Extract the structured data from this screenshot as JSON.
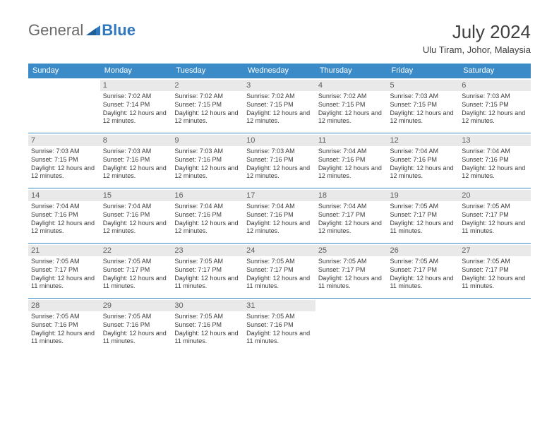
{
  "logo": {
    "part1": "General",
    "part2": "Blue",
    "triangle_color": "#2f78bd"
  },
  "title": "July 2024",
  "location": "Ulu Tiram, Johor, Malaysia",
  "colors": {
    "header_bg": "#3b8bc9",
    "header_text": "#ffffff",
    "daynum_bg": "#e9e9e9",
    "text": "#333333"
  },
  "day_headers": [
    "Sunday",
    "Monday",
    "Tuesday",
    "Wednesday",
    "Thursday",
    "Friday",
    "Saturday"
  ],
  "weeks": [
    [
      null,
      {
        "n": "1",
        "sr": "7:02 AM",
        "ss": "7:14 PM",
        "dh": "12",
        "dm": "12"
      },
      {
        "n": "2",
        "sr": "7:02 AM",
        "ss": "7:15 PM",
        "dh": "12",
        "dm": "12"
      },
      {
        "n": "3",
        "sr": "7:02 AM",
        "ss": "7:15 PM",
        "dh": "12",
        "dm": "12"
      },
      {
        "n": "4",
        "sr": "7:02 AM",
        "ss": "7:15 PM",
        "dh": "12",
        "dm": "12"
      },
      {
        "n": "5",
        "sr": "7:03 AM",
        "ss": "7:15 PM",
        "dh": "12",
        "dm": "12"
      },
      {
        "n": "6",
        "sr": "7:03 AM",
        "ss": "7:15 PM",
        "dh": "12",
        "dm": "12"
      }
    ],
    [
      {
        "n": "7",
        "sr": "7:03 AM",
        "ss": "7:15 PM",
        "dh": "12",
        "dm": "12"
      },
      {
        "n": "8",
        "sr": "7:03 AM",
        "ss": "7:16 PM",
        "dh": "12",
        "dm": "12"
      },
      {
        "n": "9",
        "sr": "7:03 AM",
        "ss": "7:16 PM",
        "dh": "12",
        "dm": "12"
      },
      {
        "n": "10",
        "sr": "7:03 AM",
        "ss": "7:16 PM",
        "dh": "12",
        "dm": "12"
      },
      {
        "n": "11",
        "sr": "7:04 AM",
        "ss": "7:16 PM",
        "dh": "12",
        "dm": "12"
      },
      {
        "n": "12",
        "sr": "7:04 AM",
        "ss": "7:16 PM",
        "dh": "12",
        "dm": "12"
      },
      {
        "n": "13",
        "sr": "7:04 AM",
        "ss": "7:16 PM",
        "dh": "12",
        "dm": "12"
      }
    ],
    [
      {
        "n": "14",
        "sr": "7:04 AM",
        "ss": "7:16 PM",
        "dh": "12",
        "dm": "12"
      },
      {
        "n": "15",
        "sr": "7:04 AM",
        "ss": "7:16 PM",
        "dh": "12",
        "dm": "12"
      },
      {
        "n": "16",
        "sr": "7:04 AM",
        "ss": "7:16 PM",
        "dh": "12",
        "dm": "12"
      },
      {
        "n": "17",
        "sr": "7:04 AM",
        "ss": "7:16 PM",
        "dh": "12",
        "dm": "12"
      },
      {
        "n": "18",
        "sr": "7:04 AM",
        "ss": "7:17 PM",
        "dh": "12",
        "dm": "12"
      },
      {
        "n": "19",
        "sr": "7:05 AM",
        "ss": "7:17 PM",
        "dh": "12",
        "dm": "11"
      },
      {
        "n": "20",
        "sr": "7:05 AM",
        "ss": "7:17 PM",
        "dh": "12",
        "dm": "11"
      }
    ],
    [
      {
        "n": "21",
        "sr": "7:05 AM",
        "ss": "7:17 PM",
        "dh": "12",
        "dm": "11"
      },
      {
        "n": "22",
        "sr": "7:05 AM",
        "ss": "7:17 PM",
        "dh": "12",
        "dm": "11"
      },
      {
        "n": "23",
        "sr": "7:05 AM",
        "ss": "7:17 PM",
        "dh": "12",
        "dm": "11"
      },
      {
        "n": "24",
        "sr": "7:05 AM",
        "ss": "7:17 PM",
        "dh": "12",
        "dm": "11"
      },
      {
        "n": "25",
        "sr": "7:05 AM",
        "ss": "7:17 PM",
        "dh": "12",
        "dm": "11"
      },
      {
        "n": "26",
        "sr": "7:05 AM",
        "ss": "7:17 PM",
        "dh": "12",
        "dm": "11"
      },
      {
        "n": "27",
        "sr": "7:05 AM",
        "ss": "7:17 PM",
        "dh": "12",
        "dm": "11"
      }
    ],
    [
      {
        "n": "28",
        "sr": "7:05 AM",
        "ss": "7:16 PM",
        "dh": "12",
        "dm": "11"
      },
      {
        "n": "29",
        "sr": "7:05 AM",
        "ss": "7:16 PM",
        "dh": "12",
        "dm": "11"
      },
      {
        "n": "30",
        "sr": "7:05 AM",
        "ss": "7:16 PM",
        "dh": "12",
        "dm": "11"
      },
      {
        "n": "31",
        "sr": "7:05 AM",
        "ss": "7:16 PM",
        "dh": "12",
        "dm": "11"
      },
      null,
      null,
      null
    ]
  ],
  "labels": {
    "sunrise": "Sunrise:",
    "sunset": "Sunset:",
    "daylight": "Daylight:",
    "hours_word": "hours",
    "and_word": "and",
    "minutes_word": "minutes."
  }
}
